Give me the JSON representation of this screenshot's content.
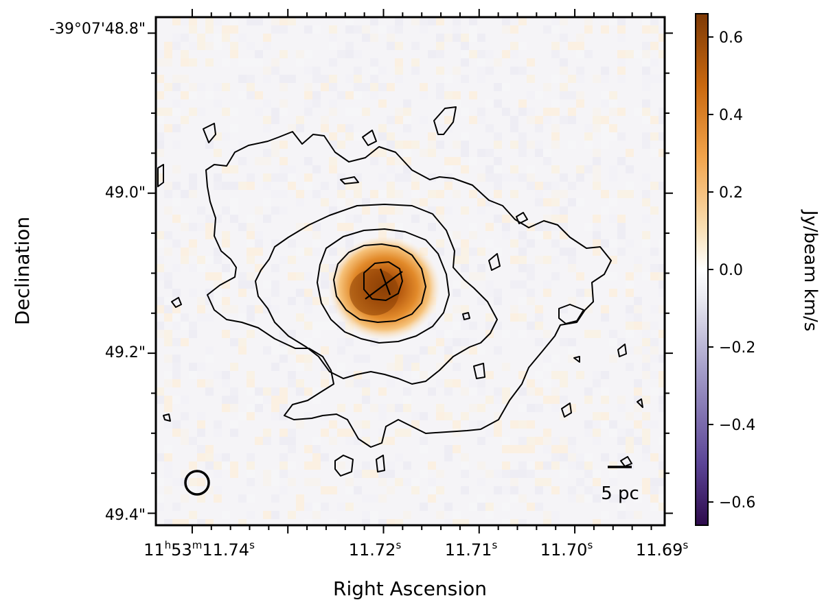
{
  "chart_data": {
    "type": "heatmap",
    "title": "",
    "xlabel": "Right Ascension",
    "ylabel": "Declination",
    "x_ticks": [
      {
        "label_main": "11",
        "sup1": "h",
        "mid": "53",
        "sup2": "m",
        "label_end": "11.74",
        "sup3": "s",
        "value_s": 11.74
      },
      {
        "label_main": "11.72",
        "sup1": "s",
        "value_s": 11.72
      },
      {
        "label_main": "11.71",
        "sup1": "s",
        "value_s": 11.71
      },
      {
        "label_main": "11.70",
        "sup1": "s",
        "value_s": 11.7
      },
      {
        "label_main": "11.69",
        "sup1": "s",
        "value_s": 11.69
      }
    ],
    "x_range_s": [
      11.7438,
      11.6906
    ],
    "y_ticks": [
      {
        "label": "-39°07'48.8\"",
        "value_arcsec": 48.8
      },
      {
        "label": "49.0\"",
        "value_arcsec": 49.0
      },
      {
        "label": "49.2\"",
        "value_arcsec": 49.2
      },
      {
        "label": "49.4\"",
        "value_arcsec": 49.4
      }
    ],
    "y_range_arcsec": [
      48.78,
      49.415
    ],
    "colorbar": {
      "label": "Jy/beam km/s",
      "range": [
        -0.66,
        0.66
      ],
      "ticks": [
        {
          "value": 0.6,
          "label": "0.6"
        },
        {
          "value": 0.4,
          "label": "0.4"
        },
        {
          "value": 0.2,
          "label": "0.2"
        },
        {
          "value": 0.0,
          "label": "0.0"
        },
        {
          "value": -0.2,
          "label": "−0.2"
        },
        {
          "value": -0.4,
          "label": "−0.4"
        },
        {
          "value": -0.6,
          "label": "−0.6"
        }
      ],
      "colormap": [
        "#2d0a4b",
        "#5b4496",
        "#a39cc8",
        "#e8e8f0",
        "#ffffff",
        "#f9dfb4",
        "#f2a44b",
        "#c9680f",
        "#7d3905"
      ]
    },
    "emission_peak": {
      "ra_s": 11.7194,
      "dec_arcsec": 49.115,
      "peak_value": 0.55
    },
    "contour_count": 5,
    "scalebar_label": "5 pc",
    "beam_shape": "circle, bottom-left"
  }
}
